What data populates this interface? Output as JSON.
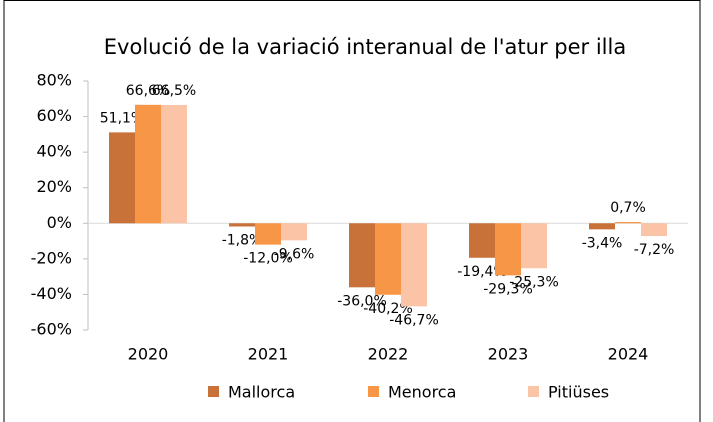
{
  "chart_data": {
    "type": "bar",
    "title": "Evolució de la variació interanual de l'atur per illa",
    "categories": [
      "2020",
      "2021",
      "2022",
      "2023",
      "2024"
    ],
    "series": [
      {
        "name": "Mallorca",
        "color": "#c8723a",
        "values": [
          51.1,
          -1.8,
          -36.0,
          -19.4,
          -3.4
        ],
        "value_labels": [
          "51,1%",
          "-1,8%",
          "-36,0%",
          "-19,4%",
          "-3,4%"
        ]
      },
      {
        "name": "Menorca",
        "color": "#f79646",
        "values": [
          66.6,
          -12.0,
          -40.2,
          -29.3,
          0.7
        ],
        "value_labels": [
          "66,6%",
          "-12,0%",
          "-40,2%",
          "-29,3%",
          "0,7%"
        ]
      },
      {
        "name": "Pitiüses",
        "color": "#fbc4a6",
        "values": [
          66.5,
          -9.6,
          -46.7,
          -25.3,
          -7.2
        ],
        "value_labels": [
          "66,5%",
          "-9,6%",
          "-46,7%",
          "-25,3%",
          "-7,2%"
        ]
      }
    ],
    "ylim": [
      -60,
      80
    ],
    "yticks": [
      {
        "value": -60,
        "label": "-60%"
      },
      {
        "value": -40,
        "label": "-40%"
      },
      {
        "value": -20,
        "label": "-20%"
      },
      {
        "value": 0,
        "label": "0%"
      },
      {
        "value": 20,
        "label": "20%"
      },
      {
        "value": 40,
        "label": "40%"
      },
      {
        "value": 60,
        "label": "60%"
      },
      {
        "value": 80,
        "label": "80%"
      }
    ],
    "legend": "bottom"
  }
}
